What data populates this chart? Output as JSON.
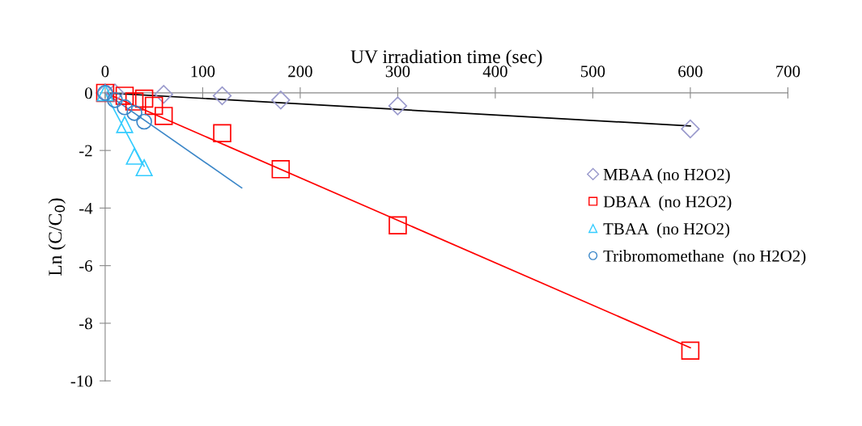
{
  "chart_data": {
    "type": "scatter",
    "xlabel": "UV irradiation time (sec)",
    "ylabel": "Ln (C/C$_{0}$)",
    "xlim": [
      0,
      700
    ],
    "xticks": [
      0,
      100,
      200,
      300,
      400,
      500,
      600,
      700
    ],
    "ylim": [
      -10,
      0
    ],
    "yticks": [
      0,
      -2,
      -4,
      -6,
      -8,
      -10
    ],
    "grid": false,
    "legend": "right",
    "series": [
      {
        "name": "MBAA (no H2O2)",
        "marker": "diamond",
        "color": "#9999cc",
        "x": [
          0,
          10,
          60,
          120,
          180,
          300,
          600
        ],
        "values": [
          0,
          0,
          -0.05,
          -0.1,
          -0.25,
          -0.45,
          -1.25
        ]
      },
      {
        "name": "DBAA  (no H2O2)",
        "marker": "square",
        "color": "#ff0000",
        "x": [
          0,
          20,
          30,
          40,
          50,
          60,
          120,
          180,
          300,
          600
        ],
        "values": [
          0,
          -0.1,
          -0.3,
          -0.2,
          -0.45,
          -0.8,
          -1.4,
          -2.65,
          -4.6,
          -8.95
        ]
      },
      {
        "name": "TBAA  (no H2O2)",
        "marker": "triangle",
        "color": "#33ccff",
        "x": [
          0,
          20,
          30,
          40
        ],
        "values": [
          0,
          -1.1,
          -2.2,
          -2.6
        ]
      },
      {
        "name": "Tribromomethane  (no H2O2)",
        "marker": "circle",
        "color": "#3a86c8",
        "x": [
          0,
          10,
          20,
          30,
          40
        ],
        "values": [
          0,
          -0.25,
          -0.5,
          -0.7,
          -1.0
        ]
      },
      {
        "type": "line",
        "color": "#000000",
        "x": [
          0,
          600
        ],
        "values": [
          0,
          -1.15
        ]
      },
      {
        "type": "line",
        "color": "#ff0000",
        "x": [
          0,
          600
        ],
        "values": [
          0,
          -8.85
        ]
      },
      {
        "type": "line",
        "color": "#33ccff",
        "x": [
          0,
          40
        ],
        "values": [
          0,
          -2.55
        ]
      },
      {
        "type": "line",
        "color": "#3a86c8",
        "x": [
          0,
          140
        ],
        "values": [
          0,
          -3.3
        ]
      }
    ]
  }
}
